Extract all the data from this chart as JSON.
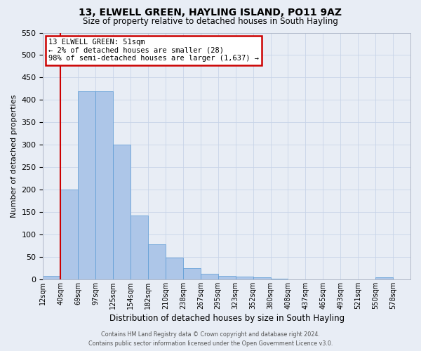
{
  "title": "13, ELWELL GREEN, HAYLING ISLAND, PO11 9AZ",
  "subtitle": "Size of property relative to detached houses in South Hayling",
  "xlabel": "Distribution of detached houses by size in South Hayling",
  "ylabel": "Number of detached properties",
  "bin_labels": [
    "12sqm",
    "40sqm",
    "69sqm",
    "97sqm",
    "125sqm",
    "154sqm",
    "182sqm",
    "210sqm",
    "238sqm",
    "267sqm",
    "295sqm",
    "323sqm",
    "352sqm",
    "380sqm",
    "408sqm",
    "437sqm",
    "465sqm",
    "493sqm",
    "521sqm",
    "550sqm",
    "578sqm"
  ],
  "bar_heights": [
    8,
    200,
    420,
    420,
    300,
    143,
    78,
    48,
    25,
    12,
    8,
    6,
    4,
    2,
    0,
    0,
    0,
    0,
    0,
    4,
    0
  ],
  "bar_color": "#adc6e8",
  "bar_edge_color": "#5b9bd5",
  "property_line_index": 1,
  "property_line_color": "#cc0000",
  "annotation_title": "13 ELWELL GREEN: 51sqm",
  "annotation_line1": "← 2% of detached houses are smaller (28)",
  "annotation_line2": "98% of semi-detached houses are larger (1,637) →",
  "annotation_box_color": "#ffffff",
  "annotation_box_edge_color": "#cc0000",
  "ylim": [
    0,
    550
  ],
  "yticks": [
    0,
    50,
    100,
    150,
    200,
    250,
    300,
    350,
    400,
    450,
    500,
    550
  ],
  "grid_color": "#c8d4e8",
  "background_color": "#e8edf5",
  "footer_line1": "Contains HM Land Registry data © Crown copyright and database right 2024.",
  "footer_line2": "Contains public sector information licensed under the Open Government Licence v3.0."
}
